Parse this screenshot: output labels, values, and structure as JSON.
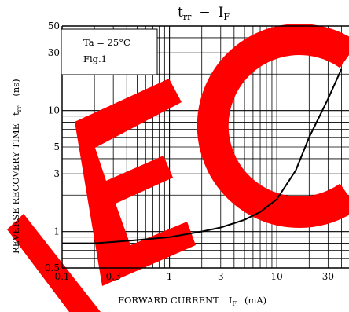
{
  "chart_data": {
    "type": "line",
    "title": {
      "main_sym": "t",
      "main_sub": "rr",
      "sep": "−",
      "x_sym": "I",
      "x_sub": "F"
    },
    "xlabel": {
      "text": "FORWARD CURRENT",
      "sym": "I",
      "sub": "F",
      "unit": "(mA)"
    },
    "ylabel": {
      "text": "REVERSE RECOVERY TIME",
      "sym": "t",
      "sub": "rr",
      "unit": "(ns)"
    },
    "annotation": {
      "line1": "Ta = 25°C",
      "line2": "Fig.1"
    },
    "x_scale": "log",
    "y_scale": "log",
    "xlim": [
      0.1,
      40
    ],
    "ylim": [
      0.5,
      50
    ],
    "x_ticks": [
      {
        "value": 0.1,
        "label": "0.1"
      },
      {
        "value": 0.3,
        "label": "0.3"
      },
      {
        "value": 1,
        "label": "1"
      },
      {
        "value": 3,
        "label": "3"
      },
      {
        "value": 10,
        "label": "10"
      },
      {
        "value": 30,
        "label": "30"
      }
    ],
    "y_ticks": [
      {
        "value": 0.5,
        "label": "0.5"
      },
      {
        "value": 1,
        "label": "1"
      },
      {
        "value": 3,
        "label": "3"
      },
      {
        "value": 5,
        "label": "5"
      },
      {
        "value": 10,
        "label": "10"
      },
      {
        "value": 30,
        "label": "30"
      },
      {
        "value": 50,
        "label": "50"
      }
    ],
    "grid": true,
    "series": [
      {
        "x": [
          0.1,
          0.2,
          0.3,
          0.5,
          1,
          2,
          3,
          5,
          7,
          10,
          15,
          20,
          30,
          40
        ],
        "y": [
          0.8,
          0.8,
          0.82,
          0.85,
          0.9,
          1.0,
          1.08,
          1.25,
          1.45,
          1.85,
          3.2,
          6.0,
          12.5,
          22
        ]
      }
    ]
  },
  "watermark": {
    "color": "#ff0000"
  }
}
